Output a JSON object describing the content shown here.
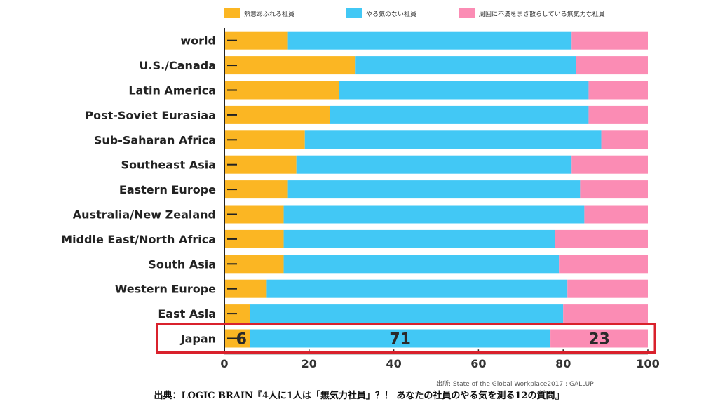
{
  "chart_data": {
    "type": "bar",
    "orientation": "horizontal",
    "stacked": true,
    "categories": [
      "world",
      "U.S./Canada",
      "Latin America",
      "Post-Soviet Eurasiaa",
      "Sub-Saharan Africa",
      "Southeast Asia",
      "Eastern Europe",
      "Australia/New Zealand",
      "Middle East/North Africa",
      "South Asia",
      "Western Europe",
      "East Asia",
      "Japan"
    ],
    "series": [
      {
        "name": "熱意あふれる社員",
        "color": "#fbb623",
        "values": [
          15,
          31,
          27,
          25,
          19,
          17,
          15,
          14,
          14,
          14,
          10,
          6,
          6
        ]
      },
      {
        "name": "やる気のない社員",
        "color": "#42c8f5",
        "values": [
          67,
          52,
          59,
          61,
          70,
          65,
          69,
          71,
          64,
          65,
          71,
          74,
          71
        ]
      },
      {
        "name": "周囲に不満をまき散らしている無気力な社員",
        "color": "#fb8cb4",
        "values": [
          18,
          17,
          14,
          14,
          11,
          18,
          16,
          15,
          22,
          21,
          19,
          20,
          23
        ]
      }
    ],
    "xlim": [
      0,
      100
    ],
    "x_ticks": [
      0,
      20,
      40,
      60,
      80,
      100
    ],
    "legend_position": "top",
    "highlight_category": "Japan",
    "highlight_color": "#d9212c",
    "data_labels": {
      "category": "Japan",
      "values": [
        "6",
        "71",
        "23"
      ]
    },
    "source": "出所: State of the Global Workplace2017 : GALLUP"
  },
  "caption": "出典：LOGIC BRAIN『4人に1人は「無気力社員」？！ あなたの社員のやる気を測る12の質問』"
}
